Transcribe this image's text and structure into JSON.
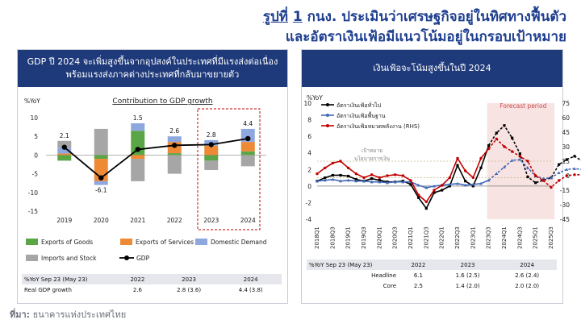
{
  "title": {
    "prefix": "รูปที่",
    "number": "1",
    "line1_rest": "กนง. ประเมินว่าเศรษฐกิจอยู่ในทิศทางฟื้นตัว",
    "line2": "และอัตราเงินเฟ้อมีแนวโน้มอยู่ในกรอบเป้าหมาย"
  },
  "left_panel": {
    "header_line1": "GDP ปี 2024 จะเพิ่มสูงขึ้นจากอุปสงค์ในประเทศที่มีแรงส่งต่อเนื่อง",
    "header_line2": "พร้อมแรงส่งภาคต่างประเทศที่กลับมาขยายตัว",
    "table": {
      "headers": [
        "%YoY Sep 23 (May 23)",
        "2022",
        "2023",
        "2024"
      ],
      "rows": [
        [
          "Real GDP growth",
          "2.6",
          "2.8 (3.6)",
          "4.4 (3.8)"
        ]
      ]
    }
  },
  "right_panel": {
    "header": "เงินเฟ้อจะโน้มสูงขึ้นในปี 2024",
    "table": {
      "headers": [
        "%YoY Sep 23 (May 23)",
        "2022",
        "2023",
        "2024"
      ],
      "rows": [
        [
          "Headline",
          "6.1",
          "1.6 (2.5)",
          "2.6 (2.4)"
        ],
        [
          "Core",
          "2.5",
          "1.4 (2.0)",
          "2.0 (2.0)"
        ]
      ]
    }
  },
  "source": {
    "label": "ที่มา:",
    "text": "ธนาคารแห่งประเทศไทย"
  },
  "chart_data": [
    {
      "type": "bar",
      "title": "Contribution to GDP growth",
      "ylabel": "%YoY",
      "ylim": [
        -15,
        10
      ],
      "yticks": [
        10,
        5,
        0,
        -5,
        -10,
        -15
      ],
      "categories": [
        "2019",
        "2020",
        "2021",
        "2022",
        "2023",
        "2024"
      ],
      "stacked": true,
      "series": [
        {
          "name": "Exports of Goods",
          "color": "#5aa545",
          "values": [
            -1.5,
            -1.0,
            6.5,
            0.5,
            -1.5,
            1.0
          ]
        },
        {
          "name": "Exports of Services",
          "color": "#ee8a36",
          "values": [
            0.4,
            -6.0,
            -1.0,
            3.0,
            2.5,
            2.5
          ]
        },
        {
          "name": "Domestic Demand",
          "color": "#8ea8df",
          "values": [
            1.6,
            -1.0,
            2.0,
            1.5,
            1.5,
            3.5
          ]
        },
        {
          "name": "Imports and Stock",
          "color": "#a6a6a6",
          "values": [
            1.8,
            7.0,
            -6.0,
            -5.0,
            -2.5,
            -3.0
          ]
        }
      ],
      "line": {
        "name": "GDP",
        "values": [
          2.1,
          -6.1,
          1.5,
          2.6,
          2.8,
          4.4
        ],
        "color": "#000000"
      },
      "data_labels": [
        "2.1",
        "-6.1",
        "1.5",
        "2.6",
        "2.8",
        "4.4"
      ],
      "highlight_categories": [
        "2023",
        "2024"
      ],
      "legend_placement": "bottom"
    },
    {
      "type": "line",
      "ylabel_left": "%YoY",
      "ylim_left": [
        -4,
        10
      ],
      "yticks_left": [
        10,
        8,
        6,
        4,
        2,
        0,
        -2,
        -4
      ],
      "ylim_right": [
        -45,
        75
      ],
      "yticks_right": [
        75,
        60,
        45,
        30,
        15,
        0,
        -15,
        -30,
        -45
      ],
      "x_ticks": [
        "2018Q1",
        "2018Q3",
        "2019Q1",
        "2019Q3",
        "2020Q1",
        "2020Q3",
        "2021Q1",
        "2021Q3",
        "2022Q1",
        "2022Q3",
        "2023Q1",
        "2023Q3",
        "2024Q1",
        "2024Q3",
        "2025Q1",
        "2025Q3"
      ],
      "forecast_label": "Forecast period",
      "forecast_start": "2023Q3",
      "target_label_1": "เป้าหมาย",
      "target_label_2": "นโยบายการเงิน",
      "target_band": [
        1,
        3
      ],
      "legend_placement": "top-left",
      "series": [
        {
          "name": "อัตราเงินเฟ้อทั่วไป",
          "axis": "left",
          "color": "#000000",
          "marker": "square",
          "values": [
            0.6,
            1.0,
            1.3,
            1.3,
            1.2,
            0.8,
            0.6,
            0.9,
            0.7,
            0.5,
            0.5,
            0.6,
            0.2,
            -1.4,
            -2.7,
            -0.8,
            -0.5,
            0.0,
            2.5,
            0.6,
            0.0,
            2.2,
            4.9,
            6.4,
            7.3,
            5.8,
            3.9,
            1.1,
            0.4,
            0.7,
            1.0,
            2.6,
            3.2,
            3.6,
            3.0,
            2.3,
            1.5
          ]
        },
        {
          "name": "อัตราเงินเฟ้อพื้นฐาน",
          "axis": "left",
          "color": "#4169b6",
          "marker": "triangle",
          "values": [
            0.6,
            0.7,
            0.8,
            0.6,
            0.7,
            0.6,
            0.6,
            0.5,
            0.5,
            0.4,
            0.5,
            0.5,
            0.5,
            0.1,
            -0.2,
            0.0,
            0.1,
            0.2,
            0.3,
            0.1,
            0.2,
            0.3,
            0.7,
            1.5,
            2.3,
            3.1,
            3.2,
            2.2,
            1.2,
            0.9,
            1.0,
            1.6,
            2.0,
            2.1,
            2.0,
            1.9,
            1.8
          ]
        },
        {
          "name": "อัตราเงินเฟ้อหมวดพลังงาน (RHS)",
          "axis": "right",
          "color": "#c00000",
          "marker": "circle",
          "values": [
            2,
            8,
            13,
            15,
            8,
            2,
            -2,
            1,
            -2,
            0,
            1,
            0,
            -5,
            -20,
            -27,
            -15,
            -10,
            -2,
            18,
            5,
            -2,
            18,
            28,
            38,
            30,
            25,
            20,
            15,
            0,
            -5,
            -12,
            -5,
            0,
            1,
            1,
            1,
            1
          ]
        }
      ]
    }
  ]
}
